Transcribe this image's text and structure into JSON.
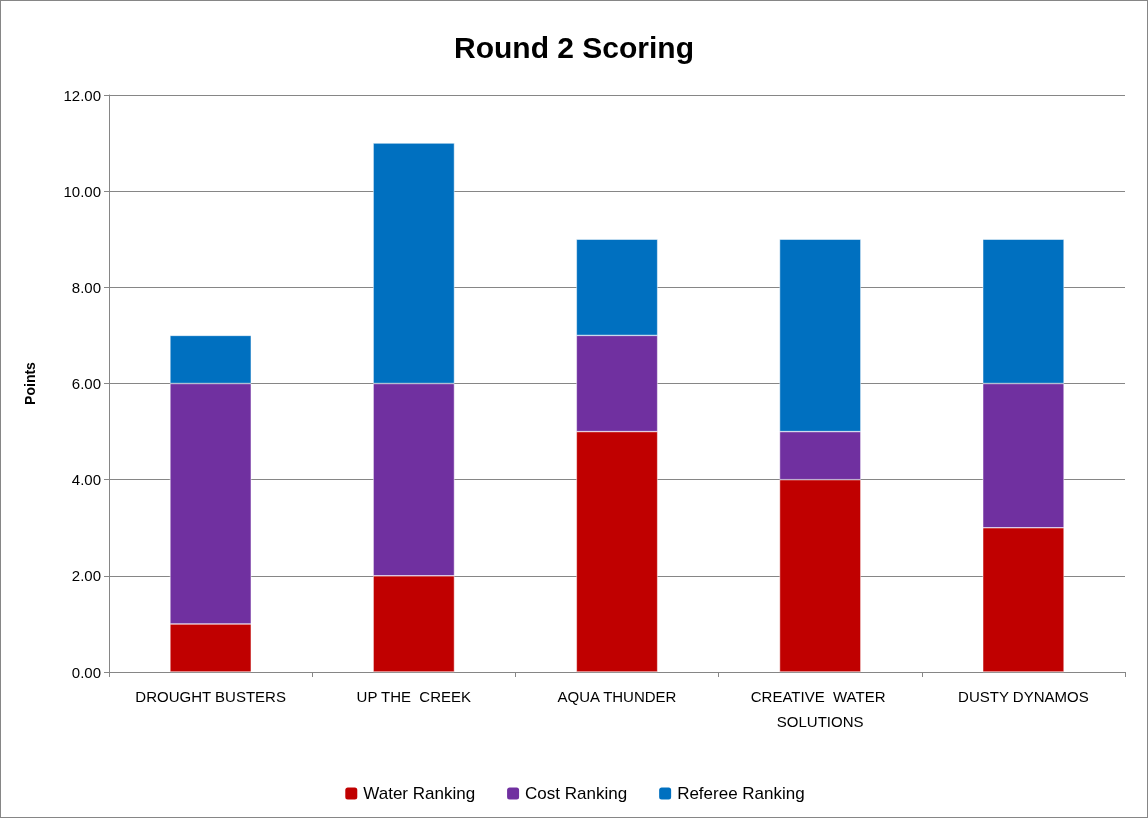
{
  "chart_data": {
    "type": "bar",
    "title": "Round 2 Scoring",
    "ylabel": "Points",
    "stacked": true,
    "grid": "y",
    "legend": "bottom",
    "categories": [
      "DROUGHT BUSTERS",
      "UP THE  CREEK",
      "AQUA THUNDER",
      "CREATIVE  WATER SOLUTIONS",
      "DUSTY DYNAMOS"
    ],
    "series": [
      {
        "name": "Water Ranking",
        "color": "#c00000",
        "values": [
          1,
          2,
          5,
          4,
          3
        ]
      },
      {
        "name": "Cost Ranking",
        "color": "#7030a0",
        "values": [
          5,
          4,
          2,
          1,
          3
        ]
      },
      {
        "name": "Referee Ranking",
        "color": "#0070c0",
        "values": [
          1,
          5,
          2,
          4,
          3
        ]
      }
    ],
    "ylim": [
      0,
      12
    ],
    "yticks": [
      {
        "value": 0,
        "label": "0.00"
      },
      {
        "value": 2,
        "label": "2.00"
      },
      {
        "value": 4,
        "label": "4.00"
      },
      {
        "value": 6,
        "label": "6.00"
      },
      {
        "value": 8,
        "label": "8.00"
      },
      {
        "value": 10,
        "label": "10.00"
      },
      {
        "value": 12,
        "label": "12.00"
      }
    ]
  }
}
